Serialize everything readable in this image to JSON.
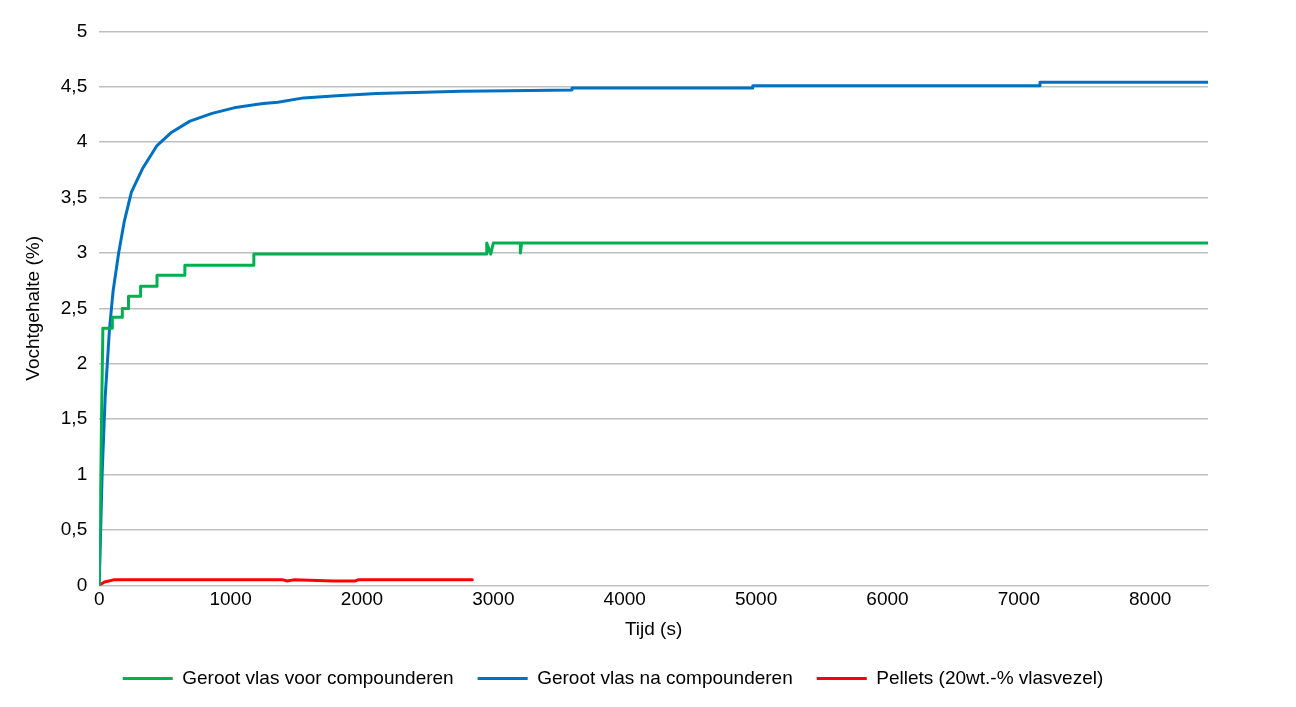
{
  "chart_data": {
    "type": "line",
    "xlabel": "Tijd (s)",
    "ylabel": "Vochtgehalte (%)",
    "xlim": [
      0,
      8440
    ],
    "xticks": [
      0,
      1000,
      2000,
      3000,
      4000,
      5000,
      6000,
      7000,
      8000
    ],
    "ylim": [
      0,
      5
    ],
    "yticks": [
      {
        "value": 0,
        "label": "0"
      },
      {
        "value": 0.5,
        "label": "0,5"
      },
      {
        "value": 1,
        "label": "1"
      },
      {
        "value": 1.5,
        "label": "1,5"
      },
      {
        "value": 2,
        "label": "2"
      },
      {
        "value": 2.5,
        "label": "2,5"
      },
      {
        "value": 3,
        "label": "3"
      },
      {
        "value": 3.5,
        "label": "3,5"
      },
      {
        "value": 4,
        "label": "4"
      },
      {
        "value": 4.5,
        "label": "4,5"
      },
      {
        "value": 5,
        "label": "5"
      }
    ],
    "grid": "y",
    "legend": "bottom",
    "marker": "none",
    "line_style": "solid",
    "series": [
      {
        "name": "Geroot vlas voor compounderen",
        "color": "#00b050",
        "x": [
          0,
          15,
          28,
          100,
          100,
          176,
          176,
          223,
          223,
          315,
          315,
          440,
          440,
          652,
          652,
          1177,
          1177,
          2950,
          2950,
          2980,
          3000,
          3206,
          3206,
          3215,
          8440
        ],
        "values": [
          0,
          1.3,
          2.32,
          2.32,
          2.42,
          2.42,
          2.5,
          2.5,
          2.61,
          2.61,
          2.7,
          2.7,
          2.8,
          2.8,
          2.89,
          2.89,
          2.99,
          2.99,
          3.09,
          2.99,
          3.09,
          3.09,
          3.0,
          3.09,
          3.09
        ]
      },
      {
        "name": "Geroot vlas na compounderen",
        "color": "#0070c0",
        "x": [
          0,
          22,
          45,
          78,
          106,
          148,
          190,
          245,
          329,
          440,
          552,
          691,
          859,
          1026,
          1249,
          1360,
          1556,
          1807,
          2113,
          2755,
          3599,
          3599,
          4975,
          4975,
          7161,
          7161,
          8440
        ],
        "values": [
          0,
          1.0,
          1.69,
          2.31,
          2.66,
          3.0,
          3.28,
          3.55,
          3.76,
          3.97,
          4.09,
          4.19,
          4.26,
          4.31,
          4.35,
          4.36,
          4.4,
          4.42,
          4.44,
          4.46,
          4.47,
          4.49,
          4.49,
          4.51,
          4.51,
          4.54,
          4.54
        ]
      },
      {
        "name": "Pellets (20wt.-% vlasvezel)",
        "color": "#ff0000",
        "x": [
          0,
          40,
          110,
          1400,
          1430,
          1480,
          1780,
          1950,
          1970,
          2840
        ],
        "values": [
          0,
          0.03,
          0.05,
          0.05,
          0.04,
          0.05,
          0.04,
          0.04,
          0.05,
          0.05
        ]
      }
    ]
  }
}
